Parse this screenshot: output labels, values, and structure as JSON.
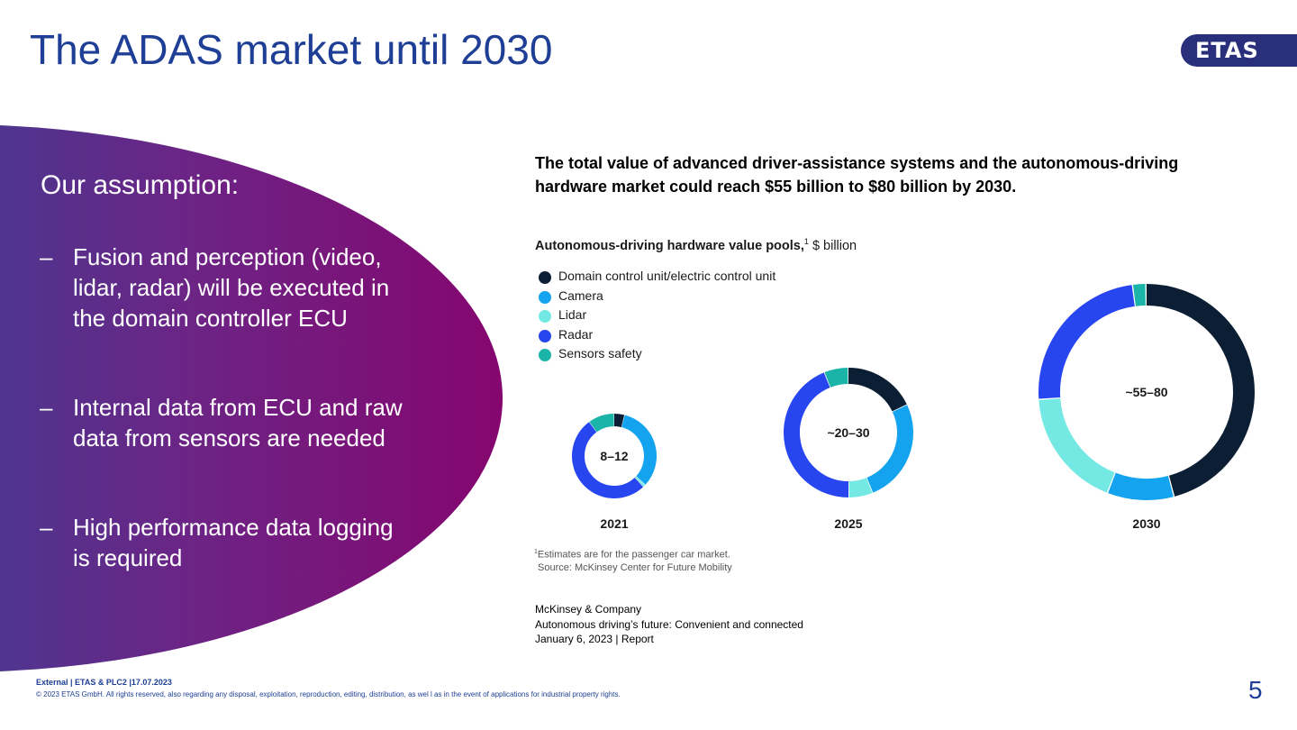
{
  "slide": {
    "title": "The ADAS market until 2030",
    "logo_text": "ETAS",
    "page_number": "5"
  },
  "panel": {
    "heading": "Our assumption:",
    "bullets": [
      {
        "dash": "–",
        "text": "Fusion and perception (video, lidar, radar) will be executed in the domain controller ECU"
      },
      {
        "dash": "–",
        "text": "Internal data from ECU and raw data from sensors are needed"
      },
      {
        "dash": "–",
        "text": "High performance data logging is required"
      }
    ],
    "colors": {
      "gradient_start": "#3a3a8a",
      "gradient_end": "#85066f"
    }
  },
  "chart_data": {
    "type": "pie",
    "headline": "The total value of advanced driver-assistance systems and the autonomous-driving hardware market could reach $55 billion to $80 billion by 2030.",
    "title": "Autonomous-driving hardware value pools,",
    "title_sup": "1",
    "title_unit": " $ billion",
    "legend": [
      {
        "name": "Domain control unit/electric control unit",
        "color": "#0c1e33"
      },
      {
        "name": "Camera",
        "color": "#14a3ef"
      },
      {
        "name": "Lidar",
        "color": "#74e9e4"
      },
      {
        "name": "Radar",
        "color": "#2746f0"
      },
      {
        "name": "Sensors safety",
        "color": "#1bb4a8"
      }
    ],
    "series": [
      {
        "name": "2021",
        "total": "8–12",
        "shares": [
          4,
          33,
          1,
          52,
          10
        ]
      },
      {
        "name": "2025",
        "total": "~20–30",
        "shares": [
          18,
          26,
          6,
          44,
          6
        ]
      },
      {
        "name": "2030",
        "total": "~55–80",
        "shares": [
          46,
          10,
          18,
          24,
          2
        ]
      }
    ],
    "footnote": "Estimates are for the passenger car market.",
    "footnote_sup": "1",
    "source_line": "Source: McKinsey Center for Future Mobility"
  },
  "source": {
    "line1": "McKinsey & Company",
    "line2": "Autonomous driving’s future: Convenient and connected",
    "line3": "January 6, 2023 | Report"
  },
  "footer": {
    "top": "External | ETAS & PLC2 |17.07.2023",
    "bottom": "© 2023 ETAS GmbH. All rights reserved, also regarding any disposal, exploitation, reproduction, editing, distribution, as wel l as in the event of applications for industrial property rights."
  }
}
